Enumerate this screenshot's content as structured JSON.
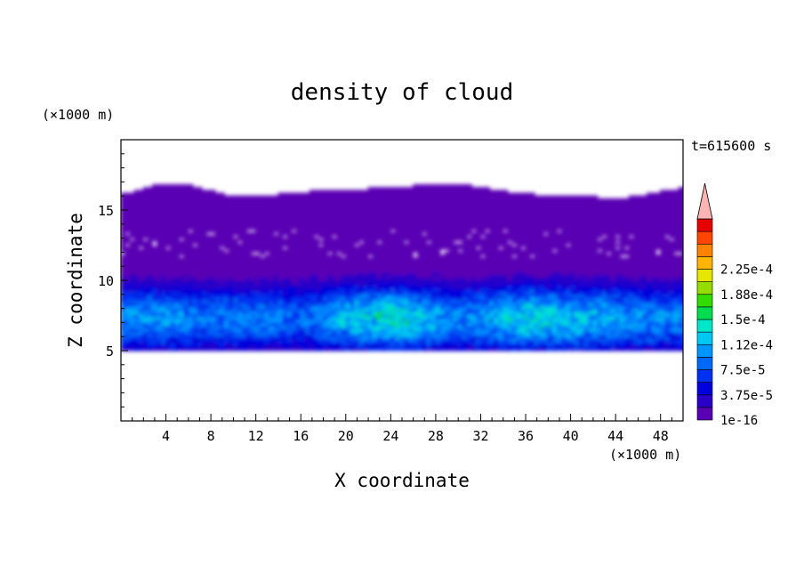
{
  "chart_data": {
    "type": "heatmap",
    "title": "density of cloud",
    "xlabel": "X coordinate",
    "ylabel": "Z coordinate",
    "x_unit": "(×1000 m)",
    "y_unit": "(×1000 m)",
    "time_label": "t=615600 s",
    "xlim": [
      0,
      50
    ],
    "ylim": [
      0,
      20
    ],
    "x_ticks": [
      "4",
      "8",
      "12",
      "16",
      "20",
      "24",
      "28",
      "32",
      "36",
      "40",
      "44",
      "48"
    ],
    "x_tick_values": [
      4,
      8,
      12,
      16,
      20,
      24,
      28,
      32,
      36,
      40,
      44,
      48
    ],
    "y_ticks": [
      "5",
      "10",
      "15"
    ],
    "y_tick_values": [
      5,
      10,
      15
    ],
    "grid": false,
    "colorbar": {
      "labels": [
        "1e-16",
        "3.75e-5",
        "7.5e-5",
        "1.12e-4",
        "1.5e-4",
        "1.88e-4",
        "2.25e-4"
      ],
      "levels": [
        1e-16,
        1.875e-05,
        3.75e-05,
        5.625e-05,
        7.5e-05,
        9.375e-05,
        0.0001125,
        0.00013125,
        0.00015,
        0.00016875,
        0.0001875,
        0.00020625,
        0.000225,
        0.00024375
      ],
      "colors": [
        "#5a00b4",
        "#2800c8",
        "#0000dc",
        "#0030f0",
        "#0068f8",
        "#0096ff",
        "#00c8f0",
        "#00e6c8",
        "#00dc50",
        "#32dc00",
        "#96dc00",
        "#e6e600",
        "#ffb400",
        "#ff8200",
        "#ff4600",
        "#e60000"
      ],
      "extend_color": "#ffb4b4"
    },
    "cloud_structure": {
      "cloud_base_km": 5.0,
      "cloud_top_km": [
        16.0,
        16.7,
        16.6,
        15.8,
        16.0,
        16.3,
        16.4,
        16.6,
        16.7,
        16.2,
        15.9,
        15.8,
        15.7,
        15.9,
        16.2,
        16.5
      ],
      "cloud_top_x_km": [
        0,
        3,
        6,
        10,
        14,
        18,
        22,
        26,
        30,
        34,
        38,
        42,
        44,
        46,
        48,
        50
      ],
      "core_x_km": [
        0,
        4,
        8,
        12,
        16,
        20,
        24,
        28,
        29,
        32,
        36,
        40,
        44,
        48,
        50
      ],
      "core_max_density": [
        9.5e-05,
        0.0001,
        8.5e-05,
        9e-05,
        8e-05,
        0.000115,
        0.000135,
        0.00011,
        9e-05,
        0.000105,
        0.00013,
        0.00012,
        0.000105,
        9.5e-05,
        9e-05
      ],
      "core_center_km": 7.2
    }
  }
}
